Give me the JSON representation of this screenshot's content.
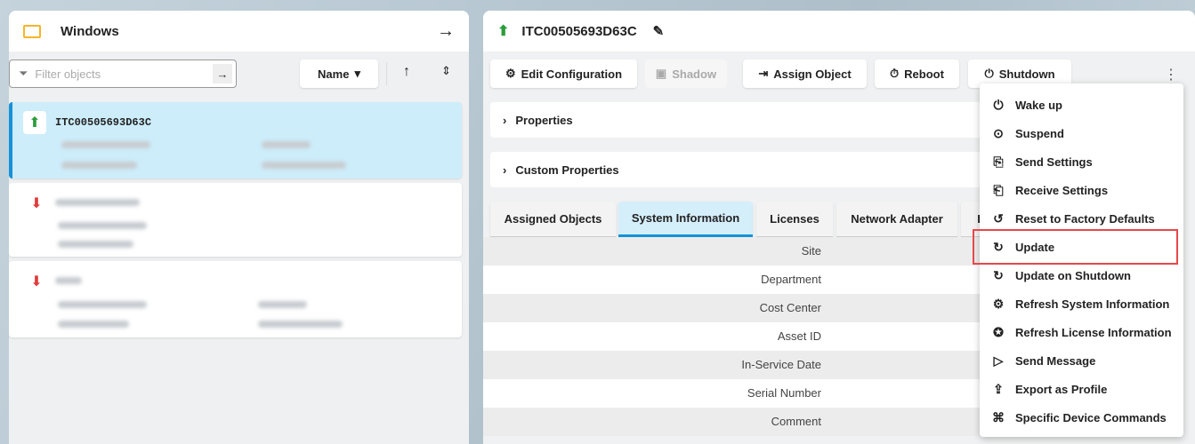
{
  "left": {
    "title": "Windows",
    "filter_placeholder": "Filter objects",
    "sort_label": "Name",
    "items": [
      {
        "name": "ITC00505693D63C",
        "status": "online"
      },
      {
        "name": "",
        "status": "offline"
      },
      {
        "name": "",
        "status": "offline"
      }
    ]
  },
  "right": {
    "title": "ITC00505693D63C",
    "toolbar": [
      "Edit Configuration",
      "Shadow",
      "Assign Object",
      "Reboot",
      "Shutdown"
    ],
    "sections": [
      "Properties",
      "Custom Properties"
    ],
    "tabs": [
      "Assigned Objects",
      "System Information",
      "Licenses",
      "Network Adapter",
      "I"
    ],
    "active_tab": "System Information",
    "fields": [
      "Site",
      "Department",
      "Cost Center",
      "Asset ID",
      "In-Service Date",
      "Serial Number",
      "Comment"
    ]
  },
  "menu": {
    "items": [
      "Wake up",
      "Suspend",
      "Send Settings",
      "Receive Settings",
      "Reset to Factory Defaults",
      "Update",
      "Update on Shutdown",
      "Refresh System Information",
      "Refresh License Information",
      "Send Message",
      "Export as Profile",
      "Specific Device Commands"
    ],
    "highlighted": "Update"
  },
  "colors": {
    "accent": "#1592d8",
    "online": "#2a9d3a",
    "offline": "#e03a3a",
    "highlight": "#e8474b",
    "folder": "#f6b52a"
  }
}
